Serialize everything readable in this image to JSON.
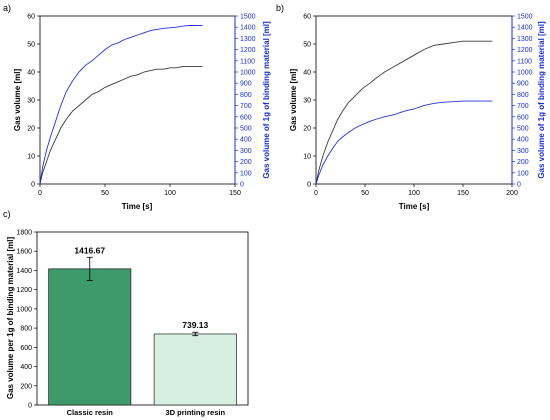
{
  "colors": {
    "black_series": "#3a3a3a",
    "blue_series": "#2233dd",
    "blue_axis": "#1a2fd6",
    "bar_classic": "#3f9a6b",
    "bar_3d": "#d7eee2",
    "bar_edge": "#1f1f1f"
  },
  "chart_data": [
    {
      "panel": "a)",
      "type": "line",
      "xlabel": "Time [s]",
      "ylabel": "Gas volume [ml]",
      "y2label": "Gas volume of 1g of binding material [ml]",
      "xlim": [
        0,
        150
      ],
      "ylim": [
        0,
        60
      ],
      "y2lim": [
        0,
        1500
      ],
      "xticks": [
        "0",
        "50",
        "100",
        "150"
      ],
      "yticks": [
        "0",
        "10",
        "20",
        "30",
        "40",
        "50",
        "60"
      ],
      "y2ticks": [
        "0",
        "100",
        "200",
        "300",
        "400",
        "500",
        "600",
        "700",
        "800",
        "900",
        "1000",
        "1100",
        "1200",
        "1300",
        "1400",
        "1500"
      ],
      "series": [
        {
          "axis": "left",
          "x": [
            0,
            2,
            5,
            8,
            12,
            16,
            20,
            25,
            30,
            35,
            40,
            45,
            50,
            55,
            60,
            65,
            70,
            75,
            80,
            85,
            90,
            95,
            100,
            105,
            110,
            115,
            120,
            125
          ],
          "y": [
            0,
            4,
            8,
            12,
            16,
            20,
            23,
            26,
            28,
            30,
            32,
            33,
            34.5,
            35.5,
            36.5,
            37.5,
            38.5,
            39,
            40,
            40.5,
            41,
            41,
            41.5,
            41.5,
            42,
            42,
            42,
            42
          ]
        },
        {
          "axis": "right",
          "x": [
            0,
            2,
            5,
            8,
            12,
            16,
            20,
            25,
            30,
            35,
            40,
            45,
            50,
            55,
            60,
            65,
            70,
            75,
            80,
            85,
            90,
            95,
            100,
            105,
            110,
            115,
            120,
            125
          ],
          "y": [
            0,
            150,
            300,
            420,
            560,
            700,
            820,
            920,
            1000,
            1060,
            1100,
            1150,
            1200,
            1240,
            1260,
            1290,
            1310,
            1330,
            1350,
            1370,
            1380,
            1390,
            1395,
            1400,
            1410,
            1415,
            1415,
            1415
          ]
        }
      ]
    },
    {
      "panel": "b)",
      "type": "line",
      "xlabel": "Time [s]",
      "ylabel": "Gas volume [ml]",
      "y2label": "Gas volume of 1g of binding material [ml]",
      "xlim": [
        0,
        200
      ],
      "ylim": [
        0,
        60
      ],
      "y2lim": [
        0,
        1500
      ],
      "xticks": [
        "0",
        "50",
        "100",
        "150",
        "200"
      ],
      "yticks": [
        "0",
        "10",
        "20",
        "30",
        "40",
        "50",
        "60"
      ],
      "y2ticks": [
        "0",
        "100",
        "200",
        "300",
        "400",
        "500",
        "600",
        "700",
        "800",
        "900",
        "1000",
        "1100",
        "1200",
        "1300",
        "1400",
        "1500"
      ],
      "series": [
        {
          "axis": "left",
          "x": [
            0,
            3,
            7,
            12,
            17,
            22,
            27,
            33,
            40,
            47,
            55,
            62,
            70,
            80,
            90,
            100,
            110,
            120,
            130,
            140,
            150,
            160,
            170,
            180
          ],
          "y": [
            0,
            5,
            10,
            15,
            19,
            23,
            26,
            29,
            31.5,
            34,
            36,
            38,
            40,
            42,
            44,
            46,
            48,
            49.5,
            50,
            50.5,
            51,
            51,
            51,
            51
          ]
        },
        {
          "axis": "right",
          "x": [
            0,
            3,
            7,
            12,
            17,
            22,
            27,
            33,
            40,
            47,
            55,
            62,
            70,
            80,
            90,
            100,
            110,
            120,
            130,
            140,
            150,
            160,
            170,
            180
          ],
          "y": [
            0,
            80,
            170,
            250,
            320,
            380,
            420,
            460,
            500,
            530,
            560,
            580,
            600,
            620,
            650,
            670,
            700,
            720,
            730,
            735,
            740,
            740,
            740,
            740
          ]
        }
      ]
    },
    {
      "panel": "c)",
      "type": "bar",
      "ylabel": "Gas volume per 1g of binding material [ml]",
      "ylim": [
        0,
        1800
      ],
      "yticks": [
        "0",
        "200",
        "400",
        "600",
        "800",
        "1000",
        "1200",
        "1400",
        "1600",
        "1800"
      ],
      "categories": [
        "Classic resin",
        "3D printing resin"
      ],
      "values": [
        1416.67,
        739.13
      ],
      "value_labels": [
        "1416.67",
        "739.13"
      ],
      "errors": [
        120,
        18
      ]
    }
  ]
}
